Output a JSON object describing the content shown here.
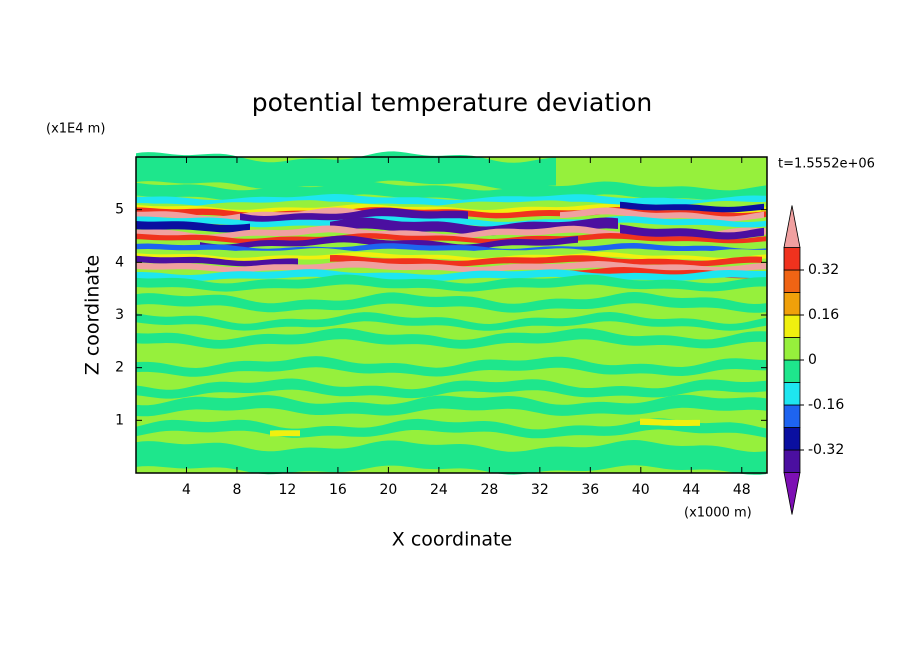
{
  "chart_data": {
    "type": "contour",
    "title": "potential temperature deviation",
    "x_label": "X coordinate",
    "y_label": "Z coordinate",
    "x_unit": "(x1000 m)",
    "y_unit": "(x1E4 m)",
    "time_label": "t=1.5552e+06",
    "xlim": [
      0,
      50
    ],
    "xticks": [
      4,
      8,
      12,
      16,
      20,
      24,
      28,
      32,
      36,
      40,
      44,
      48
    ],
    "ylim": [
      0,
      6
    ],
    "yticks": [
      1,
      2,
      3,
      4,
      5
    ],
    "colorbar": {
      "levels": [
        -0.4,
        -0.32,
        -0.24,
        -0.16,
        -0.08,
        0,
        0.08,
        0.16,
        0.24,
        0.32,
        0.4
      ],
      "colors": [
        "#7d0fb4",
        "#4b0fa0",
        "#0a0fa0",
        "#1e64f0",
        "#1ee6f0",
        "#1ee68c",
        "#96f03c",
        "#f0f00f",
        "#f0a00a",
        "#f06414",
        "#f0321e",
        "#f0a0a0"
      ],
      "ticks": [
        0.32,
        0.16,
        0,
        -0.16,
        -0.32
      ]
    }
  }
}
